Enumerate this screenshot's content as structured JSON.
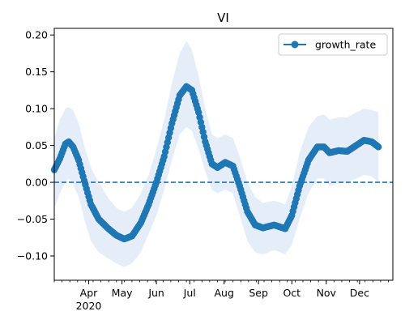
{
  "chart_data": {
    "type": "line",
    "title": "VI",
    "xlabel": "",
    "ylabel": "",
    "x_start": "2020-03-01",
    "x_end": "2020-12-31",
    "ylim": [
      -0.133,
      0.209
    ],
    "grid": false,
    "legend": {
      "position": "top-right",
      "entries": [
        "growth_rate"
      ]
    },
    "x_ticks": [
      {
        "date": "2020-04-01",
        "label": "Apr",
        "sublabel": "2020"
      },
      {
        "date": "2020-05-01",
        "label": "May",
        "sublabel": ""
      },
      {
        "date": "2020-06-01",
        "label": "Jun",
        "sublabel": ""
      },
      {
        "date": "2020-07-01",
        "label": "Jul",
        "sublabel": ""
      },
      {
        "date": "2020-08-01",
        "label": "Aug",
        "sublabel": ""
      },
      {
        "date": "2020-09-01",
        "label": "Sep",
        "sublabel": ""
      },
      {
        "date": "2020-10-01",
        "label": "Oct",
        "sublabel": ""
      },
      {
        "date": "2020-11-01",
        "label": "Nov",
        "sublabel": ""
      },
      {
        "date": "2020-12-01",
        "label": "Dec",
        "sublabel": ""
      }
    ],
    "y_ticks": [
      {
        "value": 0.2,
        "label": "0.20"
      },
      {
        "value": 0.15,
        "label": "0.15"
      },
      {
        "value": 0.1,
        "label": "0.10"
      },
      {
        "value": 0.05,
        "label": "0.05"
      },
      {
        "value": 0.0,
        "label": "0.00"
      },
      {
        "value": -0.05,
        "label": "−0.05"
      },
      {
        "value": -0.1,
        "label": "−0.10"
      }
    ],
    "reference_line": {
      "y": 0.0,
      "style": "dashed"
    },
    "series": [
      {
        "name": "growth_rate",
        "color": "#1f77b4",
        "band_color": "#dce8f5",
        "marker": "circle",
        "points": [
          {
            "x": "2020-03-01",
            "y": 0.017,
            "lo": -0.035,
            "hi": 0.06
          },
          {
            "x": "2020-03-06",
            "y": 0.032,
            "lo": -0.015,
            "hi": 0.085
          },
          {
            "x": "2020-03-11",
            "y": 0.052,
            "lo": 0.0,
            "hi": 0.1
          },
          {
            "x": "2020-03-14",
            "y": 0.055,
            "lo": 0.005,
            "hi": 0.102
          },
          {
            "x": "2020-03-18",
            "y": 0.048,
            "lo": -0.002,
            "hi": 0.098
          },
          {
            "x": "2020-03-23",
            "y": 0.03,
            "lo": -0.02,
            "hi": 0.08
          },
          {
            "x": "2020-03-28",
            "y": 0.002,
            "lo": -0.05,
            "hi": 0.05
          },
          {
            "x": "2020-04-03",
            "y": -0.03,
            "lo": -0.08,
            "hi": 0.02
          },
          {
            "x": "2020-04-10",
            "y": -0.05,
            "lo": -0.095,
            "hi": 0.0
          },
          {
            "x": "2020-04-18",
            "y": -0.062,
            "lo": -0.103,
            "hi": -0.02
          },
          {
            "x": "2020-04-26",
            "y": -0.072,
            "lo": -0.11,
            "hi": -0.035
          },
          {
            "x": "2020-05-03",
            "y": -0.077,
            "lo": -0.115,
            "hi": -0.04
          },
          {
            "x": "2020-05-10",
            "y": -0.073,
            "lo": -0.11,
            "hi": -0.035
          },
          {
            "x": "2020-05-18",
            "y": -0.055,
            "lo": -0.095,
            "hi": -0.015
          },
          {
            "x": "2020-05-25",
            "y": -0.03,
            "lo": -0.07,
            "hi": 0.01
          },
          {
            "x": "2020-06-01",
            "y": 0.0,
            "lo": -0.045,
            "hi": 0.045
          },
          {
            "x": "2020-06-08",
            "y": 0.035,
            "lo": -0.01,
            "hi": 0.085
          },
          {
            "x": "2020-06-15",
            "y": 0.08,
            "lo": 0.03,
            "hi": 0.135
          },
          {
            "x": "2020-06-22",
            "y": 0.118,
            "lo": 0.065,
            "hi": 0.175
          },
          {
            "x": "2020-06-28",
            "y": 0.13,
            "lo": 0.075,
            "hi": 0.192
          },
          {
            "x": "2020-07-03",
            "y": 0.125,
            "lo": 0.07,
            "hi": 0.18
          },
          {
            "x": "2020-07-09",
            "y": 0.095,
            "lo": 0.045,
            "hi": 0.145
          },
          {
            "x": "2020-07-15",
            "y": 0.055,
            "lo": 0.015,
            "hi": 0.1
          },
          {
            "x": "2020-07-21",
            "y": 0.025,
            "lo": -0.01,
            "hi": 0.065
          },
          {
            "x": "2020-07-26",
            "y": 0.02,
            "lo": -0.015,
            "hi": 0.06
          },
          {
            "x": "2020-08-02",
            "y": 0.027,
            "lo": -0.01,
            "hi": 0.065
          },
          {
            "x": "2020-08-09",
            "y": 0.022,
            "lo": -0.015,
            "hi": 0.06
          },
          {
            "x": "2020-08-15",
            "y": -0.005,
            "lo": -0.045,
            "hi": 0.035
          },
          {
            "x": "2020-08-22",
            "y": -0.04,
            "lo": -0.08,
            "hi": 0.0
          },
          {
            "x": "2020-08-29",
            "y": -0.058,
            "lo": -0.095,
            "hi": -0.02
          },
          {
            "x": "2020-09-05",
            "y": -0.062,
            "lo": -0.098,
            "hi": -0.028
          },
          {
            "x": "2020-09-15",
            "y": -0.058,
            "lo": -0.092,
            "hi": -0.025
          },
          {
            "x": "2020-09-25",
            "y": -0.063,
            "lo": -0.098,
            "hi": -0.03
          },
          {
            "x": "2020-10-01",
            "y": -0.045,
            "lo": -0.085,
            "hi": -0.005
          },
          {
            "x": "2020-10-08",
            "y": -0.005,
            "lo": -0.05,
            "hi": 0.04
          },
          {
            "x": "2020-10-16",
            "y": 0.03,
            "lo": -0.015,
            "hi": 0.075
          },
          {
            "x": "2020-10-24",
            "y": 0.048,
            "lo": 0.005,
            "hi": 0.09
          },
          {
            "x": "2020-10-30",
            "y": 0.048,
            "lo": 0.005,
            "hi": 0.092
          },
          {
            "x": "2020-11-04",
            "y": 0.04,
            "lo": -0.005,
            "hi": 0.085
          },
          {
            "x": "2020-11-12",
            "y": 0.043,
            "lo": 0.0,
            "hi": 0.088
          },
          {
            "x": "2020-11-20",
            "y": 0.042,
            "lo": 0.0,
            "hi": 0.088
          },
          {
            "x": "2020-11-28",
            "y": 0.05,
            "lo": 0.005,
            "hi": 0.095
          },
          {
            "x": "2020-12-05",
            "y": 0.057,
            "lo": 0.01,
            "hi": 0.1
          },
          {
            "x": "2020-12-12",
            "y": 0.055,
            "lo": 0.008,
            "hi": 0.098
          },
          {
            "x": "2020-12-18",
            "y": 0.048,
            "lo": 0.0,
            "hi": 0.095
          }
        ]
      }
    ]
  }
}
